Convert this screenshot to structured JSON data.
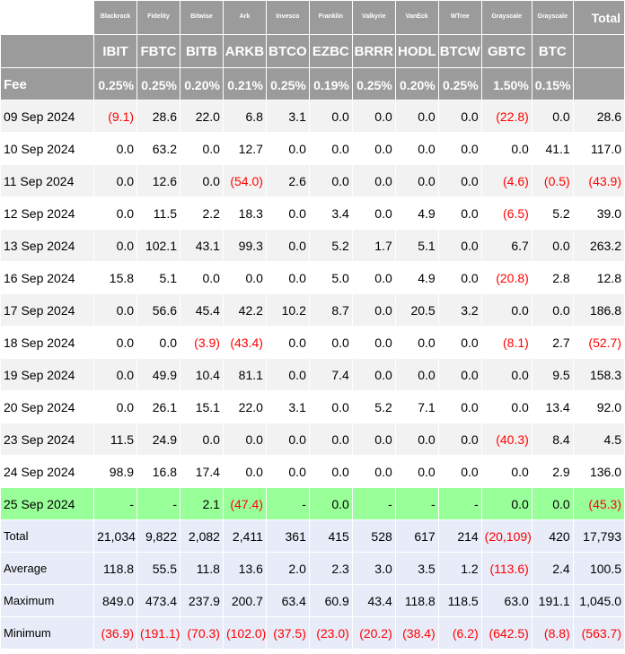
{
  "columns": [
    {
      "issuer": "Blackrock",
      "ticker": "IBIT",
      "fee": "0.25%"
    },
    {
      "issuer": "Fidelity",
      "ticker": "FBTC",
      "fee": "0.25%"
    },
    {
      "issuer": "Bitwise",
      "ticker": "BITB",
      "fee": "0.20%"
    },
    {
      "issuer": "Ark",
      "ticker": "ARKB",
      "fee": "0.21%"
    },
    {
      "issuer": "Invesco",
      "ticker": "BTCO",
      "fee": "0.25%"
    },
    {
      "issuer": "Franklin",
      "ticker": "EZBC",
      "fee": "0.19%"
    },
    {
      "issuer": "Valkyrie",
      "ticker": "BRRR",
      "fee": "0.25%"
    },
    {
      "issuer": "VanEck",
      "ticker": "HODL",
      "fee": "0.20%"
    },
    {
      "issuer": "WTree",
      "ticker": "BTCW",
      "fee": "0.25%"
    },
    {
      "issuer": "Grayscale",
      "ticker": "GBTC",
      "fee": "1.50%"
    },
    {
      "issuer": "Grayscale",
      "ticker": "BTC",
      "fee": "0.15%"
    }
  ],
  "total_label": "Total",
  "fee_label": "Fee",
  "rows": [
    {
      "date": "09 Sep 2024",
      "values": [
        "(9.1)",
        "28.6",
        "22.0",
        "6.8",
        "3.1",
        "0.0",
        "0.0",
        "0.0",
        "0.0",
        "(22.8)",
        "0.0"
      ],
      "total": "28.6"
    },
    {
      "date": "10 Sep 2024",
      "values": [
        "0.0",
        "63.2",
        "0.0",
        "12.7",
        "0.0",
        "0.0",
        "0.0",
        "0.0",
        "0.0",
        "0.0",
        "41.1"
      ],
      "total": "117.0"
    },
    {
      "date": "11 Sep 2024",
      "values": [
        "0.0",
        "12.6",
        "0.0",
        "(54.0)",
        "2.6",
        "0.0",
        "0.0",
        "0.0",
        "0.0",
        "(4.6)",
        "(0.5)"
      ],
      "total": "(43.9)"
    },
    {
      "date": "12 Sep 2024",
      "values": [
        "0.0",
        "11.5",
        "2.2",
        "18.3",
        "0.0",
        "3.4",
        "0.0",
        "4.9",
        "0.0",
        "(6.5)",
        "5.2"
      ],
      "total": "39.0"
    },
    {
      "date": "13 Sep 2024",
      "values": [
        "0.0",
        "102.1",
        "43.1",
        "99.3",
        "0.0",
        "5.2",
        "1.7",
        "5.1",
        "0.0",
        "6.7",
        "0.0"
      ],
      "total": "263.2"
    },
    {
      "date": "16 Sep 2024",
      "values": [
        "15.8",
        "5.1",
        "0.0",
        "0.0",
        "0.0",
        "5.0",
        "0.0",
        "4.9",
        "0.0",
        "(20.8)",
        "2.8"
      ],
      "total": "12.8"
    },
    {
      "date": "17 Sep 2024",
      "values": [
        "0.0",
        "56.6",
        "45.4",
        "42.2",
        "10.2",
        "8.7",
        "0.0",
        "20.5",
        "3.2",
        "0.0",
        "0.0"
      ],
      "total": "186.8"
    },
    {
      "date": "18 Sep 2024",
      "values": [
        "0.0",
        "0.0",
        "(3.9)",
        "(43.4)",
        "0.0",
        "0.0",
        "0.0",
        "0.0",
        "0.0",
        "(8.1)",
        "2.7"
      ],
      "total": "(52.7)"
    },
    {
      "date": "19 Sep 2024",
      "values": [
        "0.0",
        "49.9",
        "10.4",
        "81.1",
        "0.0",
        "7.4",
        "0.0",
        "0.0",
        "0.0",
        "0.0",
        "9.5"
      ],
      "total": "158.3"
    },
    {
      "date": "20 Sep 2024",
      "values": [
        "0.0",
        "26.1",
        "15.1",
        "22.0",
        "3.1",
        "0.0",
        "5.2",
        "7.1",
        "0.0",
        "0.0",
        "13.4"
      ],
      "total": "92.0"
    },
    {
      "date": "23 Sep 2024",
      "values": [
        "11.5",
        "24.9",
        "0.0",
        "0.0",
        "0.0",
        "0.0",
        "0.0",
        "0.0",
        "0.0",
        "(40.3)",
        "8.4"
      ],
      "total": "4.5"
    },
    {
      "date": "24 Sep 2024",
      "values": [
        "98.9",
        "16.8",
        "17.4",
        "0.0",
        "0.0",
        "0.0",
        "0.0",
        "0.0",
        "0.0",
        "0.0",
        "2.9"
      ],
      "total": "136.0"
    },
    {
      "date": "25 Sep 2024",
      "values": [
        "-",
        "-",
        "2.1",
        "(47.4)",
        "-",
        "0.0",
        "-",
        "-",
        "-",
        "0.0",
        "0.0"
      ],
      "total": "(45.3)",
      "highlight": true
    }
  ],
  "stats": [
    {
      "label": "Total",
      "values": [
        "21,034",
        "9,822",
        "2,082",
        "2,411",
        "361",
        "415",
        "528",
        "617",
        "214",
        "(20,109)",
        "420"
      ],
      "total": "17,793"
    },
    {
      "label": "Average",
      "values": [
        "118.8",
        "55.5",
        "11.8",
        "13.6",
        "2.0",
        "2.3",
        "3.0",
        "3.5",
        "1.2",
        "(113.6)",
        "2.4"
      ],
      "total": "100.5"
    },
    {
      "label": "Maximum",
      "values": [
        "849.0",
        "473.4",
        "237.9",
        "200.7",
        "63.4",
        "60.9",
        "43.4",
        "118.8",
        "118.5",
        "63.0",
        "191.1"
      ],
      "total": "1,045.0"
    },
    {
      "label": "Minimum",
      "values": [
        "(36.9)",
        "(191.1)",
        "(70.3)",
        "(102.0)",
        "(37.5)",
        "(23.0)",
        "(20.2)",
        "(38.4)",
        "(6.2)",
        "(642.5)",
        "(8.8)"
      ],
      "total": "(563.7)"
    }
  ],
  "colors": {
    "header_grey": "#9b9b9b",
    "stripe": "#f2f2f2",
    "highlight_green": "#99ff99",
    "stats_blue": "#e8ecf8",
    "negative_red": "#ff0000"
  }
}
